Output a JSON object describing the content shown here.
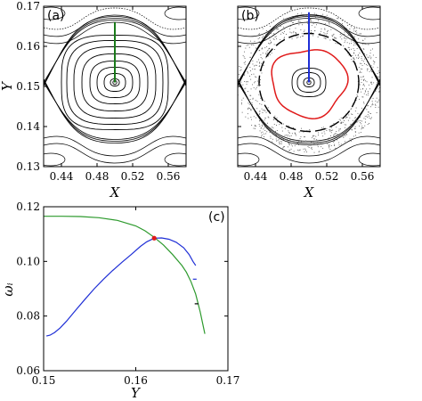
{
  "chart_data": [
    {
      "type": "scatter",
      "panel": "(a)",
      "xlabel": "X",
      "ylabel": "Y",
      "xlim": [
        0.42,
        0.58
      ],
      "ylim": [
        0.13,
        0.17
      ],
      "xticks": [
        "0.44",
        "0.48",
        "0.52",
        "0.56"
      ],
      "yticks": [
        "0.13",
        "0.14",
        "0.15",
        "0.16",
        "0.17"
      ],
      "center": [
        0.5,
        0.151
      ],
      "radial_segment": {
        "color": "#1a7a1a",
        "x": 0.5,
        "y": [
          0.151,
          0.166
        ]
      },
      "colors": {
        "orbits": "#000000",
        "segment": "#1a7a1a"
      }
    },
    {
      "type": "scatter",
      "panel": "(b)",
      "xlabel": "X",
      "ylabel": "",
      "xlim": [
        0.42,
        0.58
      ],
      "ylim": [
        0.13,
        0.17
      ],
      "xticks": [
        "0.44",
        "0.48",
        "0.52",
        "0.56"
      ],
      "center": [
        0.5,
        0.151
      ],
      "radial_segment": {
        "color": "#1f2fd6",
        "x": 0.5,
        "y": [
          0.151,
          0.1685
        ]
      },
      "highlight_curve_color": "#e01a1a",
      "colors": {
        "orbits": "#000000",
        "segment": "#1f2fd6",
        "highlight": "#e01a1a",
        "chaotic_sea": "#555555"
      }
    },
    {
      "type": "line",
      "panel": "(c)",
      "xlabel": "Y",
      "ylabel": "ωᵢ",
      "xlim": [
        0.15,
        0.17
      ],
      "ylim": [
        0.06,
        0.12
      ],
      "xticks": [
        "0.15",
        "0.16",
        "0.17"
      ],
      "yticks": [
        "0.06",
        "0.08",
        "0.10",
        "0.12"
      ],
      "series": [
        {
          "color": "#2d9a2d",
          "x": [
            0.15,
            0.152,
            0.154,
            0.156,
            0.158,
            0.16,
            0.161,
            0.162,
            0.163,
            0.164,
            0.165,
            0.1655,
            0.166,
            0.1665,
            0.167,
            0.1675
          ],
          "y": [
            0.1165,
            0.1165,
            0.1164,
            0.116,
            0.115,
            0.113,
            0.1112,
            0.1088,
            0.106,
            0.1025,
            0.0985,
            0.096,
            0.0925,
            0.088,
            0.0815,
            0.0735
          ]
        },
        {
          "color": "#1f2fd6",
          "x": [
            0.1503,
            0.1507,
            0.1512,
            0.1518,
            0.1525,
            0.1535,
            0.1545,
            0.1555,
            0.1565,
            0.1575,
            0.1585,
            0.1595,
            0.1605,
            0.1612,
            0.162,
            0.1628,
            0.1636,
            0.1644,
            0.1652,
            0.1658,
            0.1662,
            0.1665
          ],
          "y": [
            0.0727,
            0.073,
            0.074,
            0.0757,
            0.0782,
            0.0822,
            0.0862,
            0.09,
            0.0935,
            0.0967,
            0.0997,
            0.1025,
            0.1055,
            0.1072,
            0.1085,
            0.1086,
            0.1081,
            0.107,
            0.105,
            0.1025,
            0.1,
            0.0985
          ]
        },
        {
          "color": "#1f2fd6",
          "x": [
            0.1662,
            0.1666
          ],
          "y": [
            0.0935,
            0.0935
          ]
        },
        {
          "color": "#000000",
          "x": [
            0.1664,
            0.1668
          ],
          "y": [
            0.0845,
            0.0845
          ]
        }
      ],
      "marker": {
        "x": 0.162,
        "y": 0.1085,
        "color": "#e01a1a"
      }
    }
  ]
}
